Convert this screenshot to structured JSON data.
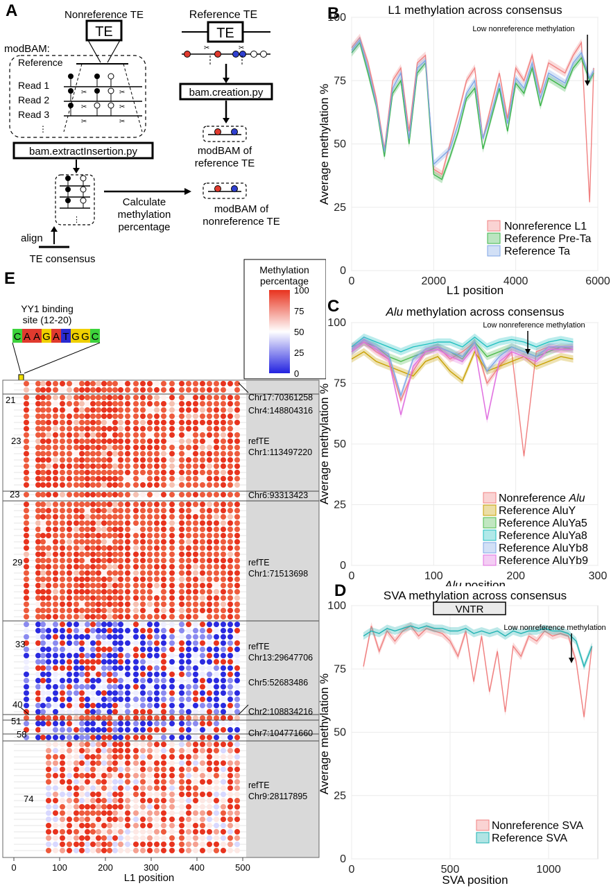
{
  "panels": {
    "a": {
      "letter": "A",
      "nonref_title": "Nonreference TE",
      "ref_title": "Reference TE",
      "te_box": "TE",
      "modbam_label": "modBAM:",
      "reference_label": "Reference",
      "reads": [
        "Read 1",
        "Read 2",
        "Read 3"
      ],
      "extract_script": "bam.extractInsertion.py",
      "creation_script": "bam.creation.py",
      "modbam_ref": "modBAM of\nreference TE",
      "modbam_ref_lines": [
        "modBAM of",
        "reference TE"
      ],
      "calc_lines": [
        "Calculate",
        "methylation",
        "percentage"
      ],
      "modbam_nonref_lines": [
        "modBAM of",
        "nonreference TE"
      ],
      "align": "align",
      "consensus": "TE consensus"
    },
    "b": {
      "letter": "B",
      "title": "L1 methylation across consensus",
      "annotation": "Low nonreference methylation",
      "xlabel": "L1 position",
      "ylabel": "Average methylation %",
      "xticks": [
        "0",
        "2000",
        "4000",
        "6000"
      ],
      "yticks": [
        "0",
        "25",
        "50",
        "75",
        "100"
      ],
      "legend": [
        "Nonreference L1",
        "Reference Pre-Ta",
        "Reference Ta"
      ]
    },
    "c": {
      "letter": "C",
      "title_italic": "Alu",
      "title_rest": " methylation across consensus",
      "annotation": "Low nonreference methylation",
      "xlabel_italic": "Alu",
      "xlabel_rest": " position",
      "ylabel": "Average methylation %",
      "xticks": [
        "0",
        "100",
        "200",
        "300"
      ],
      "yticks": [
        "0",
        "25",
        "50",
        "75",
        "100"
      ],
      "legend_prefix": "Nonreference ",
      "legend_italic": "Alu",
      "legend": [
        "Reference AluY",
        "Reference AluYa5",
        "Reference AluYa8",
        "Reference AluYb8",
        "Reference AluYb9"
      ]
    },
    "d": {
      "letter": "D",
      "title": "SVA methylation across consensus",
      "vntr": "VNTR",
      "annotation": "Low nonreference methylation",
      "xlabel": "SVA position",
      "ylabel": "Average methylation %",
      "xticks": [
        "0",
        "500",
        "1000"
      ],
      "yticks": [
        "0",
        "25",
        "50",
        "75",
        "100"
      ],
      "legend": [
        "Nonreference SVA",
        "Reference SVA"
      ]
    },
    "e": {
      "letter": "E",
      "yy1_lines": [
        "YY1 binding",
        "site (12-20)"
      ],
      "motif": [
        "C",
        "A",
        "A",
        "G",
        "A",
        "T",
        "G",
        "G",
        "C"
      ],
      "legend_title": [
        "Methylation",
        "percentage"
      ],
      "legend_ticks": [
        "100",
        "75",
        "50",
        "25",
        "0"
      ],
      "xlabel": "L1 position",
      "xticks": [
        "0",
        "100",
        "200",
        "300",
        "400",
        "500"
      ],
      "row_counts": [
        "21",
        "23",
        "23",
        "29",
        "33",
        "40",
        "51",
        "58",
        "74"
      ],
      "loci": [
        "Chr17:70361258",
        "Chr4:148804316",
        "refTE",
        "Chr1:113497220",
        "Chr6:93313423",
        "refTE",
        "Chr1:71513698",
        "refTE",
        "Chr13:29647706",
        "Chr5:52683486",
        "Chr2:108834216",
        "Chr7:104771660",
        "refTE",
        "Chr9:28117895"
      ]
    }
  },
  "colors": {
    "nonref": "#f08080",
    "preTa": "#3cb44b",
    "ta": "#7fa6e6",
    "aluY": "#c8a000",
    "aluYa5": "#4cbb4c",
    "aluYa8": "#1fbfbf",
    "aluYb8": "#7fa6e6",
    "aluYb9": "#e070e0",
    "svaRef": "#20b2b2",
    "methHigh": "#e8331e",
    "methMid": "#ffffff",
    "methLow": "#2222e0"
  },
  "chart_data": [
    {
      "type": "line",
      "title": "L1 methylation across consensus",
      "xlabel": "L1 position",
      "ylabel": "Average methylation %",
      "xlim": [
        0,
        6000
      ],
      "ylim": [
        0,
        100
      ],
      "series": [
        {
          "name": "Nonreference L1",
          "x": [
            0,
            200,
            400,
            600,
            800,
            1000,
            1200,
            1400,
            1600,
            1800,
            2000,
            2200,
            2400,
            2600,
            2800,
            3000,
            3200,
            3400,
            3600,
            3800,
            4000,
            4200,
            4400,
            4600,
            4800,
            5000,
            5200,
            5400,
            5600,
            5800,
            5900
          ],
          "values": [
            88,
            92,
            82,
            68,
            48,
            75,
            80,
            55,
            82,
            85,
            40,
            38,
            50,
            62,
            75,
            80,
            52,
            65,
            78,
            60,
            80,
            75,
            85,
            70,
            82,
            80,
            78,
            85,
            90,
            27,
            80
          ]
        },
        {
          "name": "Reference Pre-Ta",
          "x": [
            0,
            200,
            400,
            600,
            800,
            1000,
            1200,
            1400,
            1600,
            1800,
            2000,
            2200,
            2400,
            2600,
            2800,
            3000,
            3200,
            3400,
            3600,
            3800,
            4000,
            4200,
            4400,
            4600,
            4800,
            5000,
            5200,
            5400,
            5600,
            5800,
            5900
          ],
          "values": [
            86,
            90,
            78,
            65,
            45,
            70,
            75,
            50,
            78,
            82,
            38,
            36,
            45,
            55,
            68,
            72,
            48,
            60,
            72,
            55,
            74,
            70,
            80,
            65,
            76,
            74,
            72,
            80,
            84,
            75,
            78
          ]
        },
        {
          "name": "Reference Ta",
          "x": [
            0,
            200,
            400,
            600,
            800,
            1000,
            1200,
            1400,
            1600,
            1800,
            2000,
            2200,
            2400,
            2600,
            2800,
            3000,
            3200,
            3400,
            3600,
            3800,
            4000,
            4200,
            4400,
            4600,
            4800,
            5000,
            5200,
            5400,
            5600,
            5800,
            5900
          ],
          "values": [
            87,
            91,
            80,
            66,
            47,
            72,
            78,
            52,
            80,
            83,
            42,
            45,
            48,
            58,
            70,
            75,
            52,
            62,
            74,
            58,
            76,
            72,
            82,
            68,
            78,
            76,
            74,
            82,
            86,
            76,
            79
          ]
        }
      ]
    },
    {
      "type": "line",
      "title": "Alu methylation across consensus",
      "xlabel": "Alu position",
      "ylabel": "Average methylation %",
      "xlim": [
        0,
        300
      ],
      "ylim": [
        0,
        100
      ],
      "series": [
        {
          "name": "Nonreference Alu",
          "x": [
            0,
            15,
            30,
            45,
            60,
            75,
            90,
            105,
            120,
            135,
            150,
            165,
            180,
            195,
            210,
            225,
            240,
            255,
            270
          ],
          "values": [
            90,
            92,
            88,
            85,
            68,
            80,
            88,
            90,
            85,
            88,
            92,
            75,
            82,
            88,
            45,
            88,
            90,
            89,
            90
          ]
        },
        {
          "name": "Reference AluY",
          "x": [
            0,
            15,
            30,
            45,
            60,
            75,
            90,
            105,
            120,
            135,
            150,
            165,
            180,
            195,
            210,
            225,
            240,
            255,
            270
          ],
          "values": [
            85,
            88,
            84,
            82,
            80,
            78,
            84,
            86,
            80,
            76,
            88,
            80,
            82,
            84,
            86,
            82,
            84,
            86,
            85
          ]
        },
        {
          "name": "Reference AluYa5",
          "x": [
            0,
            15,
            30,
            45,
            60,
            75,
            90,
            105,
            120,
            135,
            150,
            165,
            180,
            195,
            210,
            225,
            240,
            255,
            270
          ],
          "values": [
            88,
            92,
            90,
            86,
            84,
            86,
            88,
            90,
            88,
            85,
            92,
            86,
            88,
            90,
            88,
            86,
            88,
            90,
            89
          ]
        },
        {
          "name": "Reference AluYa8",
          "x": [
            0,
            15,
            30,
            45,
            60,
            75,
            90,
            105,
            120,
            135,
            150,
            165,
            180,
            195,
            210,
            225,
            240,
            255,
            270
          ],
          "values": [
            90,
            94,
            92,
            90,
            88,
            90,
            91,
            92,
            92,
            90,
            94,
            90,
            92,
            93,
            92,
            90,
            92,
            93,
            92
          ]
        },
        {
          "name": "Reference AluYb8",
          "x": [
            0,
            15,
            30,
            45,
            60,
            75,
            90,
            105,
            120,
            135,
            150,
            165,
            180,
            195,
            210,
            225,
            240,
            255,
            270
          ],
          "values": [
            89,
            93,
            90,
            87,
            70,
            85,
            89,
            90,
            88,
            86,
            92,
            80,
            86,
            90,
            88,
            86,
            90,
            90,
            90
          ]
        },
        {
          "name": "Reference AluYb9",
          "x": [
            0,
            15,
            30,
            45,
            60,
            75,
            90,
            105,
            120,
            135,
            150,
            165,
            180,
            195,
            210,
            225,
            240,
            255,
            270
          ],
          "values": [
            88,
            92,
            89,
            85,
            62,
            82,
            88,
            89,
            86,
            84,
            90,
            60,
            84,
            88,
            86,
            84,
            89,
            89,
            89
          ]
        }
      ]
    },
    {
      "type": "line",
      "title": "SVA methylation across consensus",
      "xlabel": "SVA position",
      "ylabel": "Average methylation %",
      "xlim": [
        0,
        1250
      ],
      "ylim": [
        0,
        100
      ],
      "series": [
        {
          "name": "Nonreference SVA",
          "x": [
            60,
            100,
            140,
            180,
            220,
            260,
            300,
            340,
            380,
            420,
            460,
            500,
            540,
            580,
            620,
            660,
            700,
            740,
            780,
            820,
            860,
            900,
            940,
            980,
            1020,
            1060,
            1100,
            1140,
            1180,
            1220
          ],
          "values": [
            76,
            92,
            82,
            90,
            86,
            90,
            92,
            88,
            91,
            90,
            89,
            86,
            80,
            90,
            70,
            88,
            66,
            82,
            58,
            84,
            80,
            88,
            86,
            90,
            88,
            89,
            88,
            78,
            56,
            84
          ]
        },
        {
          "name": "Reference SVA",
          "x": [
            60,
            100,
            140,
            180,
            220,
            260,
            300,
            340,
            380,
            420,
            460,
            500,
            540,
            580,
            620,
            660,
            700,
            740,
            780,
            820,
            860,
            900,
            940,
            980,
            1020,
            1060,
            1100,
            1140,
            1180,
            1220
          ],
          "values": [
            88,
            90,
            89,
            91,
            90,
            91,
            92,
            91,
            92,
            91,
            91,
            90,
            90,
            91,
            89,
            90,
            89,
            90,
            88,
            90,
            89,
            90,
            90,
            91,
            90,
            90,
            89,
            86,
            76,
            84
          ]
        }
      ]
    }
  ]
}
